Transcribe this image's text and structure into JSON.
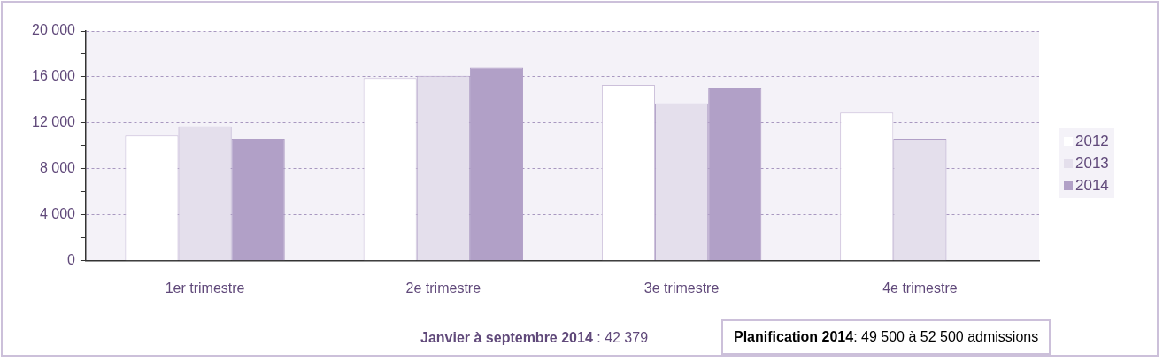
{
  "chart_data": {
    "type": "bar",
    "categories": [
      "1er trimestre",
      "2e trimestre",
      "3e trimestre",
      "4e trimestre"
    ],
    "series": [
      {
        "name": "2012",
        "color": "#ffffff",
        "values": [
          10900,
          15900,
          15300,
          12900
        ]
      },
      {
        "name": "2013",
        "color": "#e4dfec",
        "values": [
          11700,
          16100,
          13700,
          10600
        ]
      },
      {
        "name": "2014",
        "color": "#b1a0c7",
        "values": [
          10600,
          16800,
          15000,
          null
        ]
      }
    ],
    "ylim": [
      0,
      20000
    ],
    "yticks": [
      0,
      {
        "value": 2000,
        "label": null
      },
      {
        "value": 4000,
        "label": "4 000"
      },
      {
        "value": 6000,
        "label": null
      },
      {
        "value": 8000,
        "label": "8 000"
      },
      {
        "value": 10000,
        "label": null
      },
      {
        "value": 12000,
        "label": "12 000"
      },
      {
        "value": 14000,
        "label": null
      },
      {
        "value": 16000,
        "label": "16 000"
      },
      {
        "value": 18000,
        "label": null
      },
      {
        "value": 20000,
        "label": "20 000"
      }
    ],
    "grid": "y",
    "legend": "right",
    "annotations": [
      "Janvier à septembre 2014 : 42 379",
      "Planification 2014: 49 500 à 52 500 admissions"
    ]
  }
}
